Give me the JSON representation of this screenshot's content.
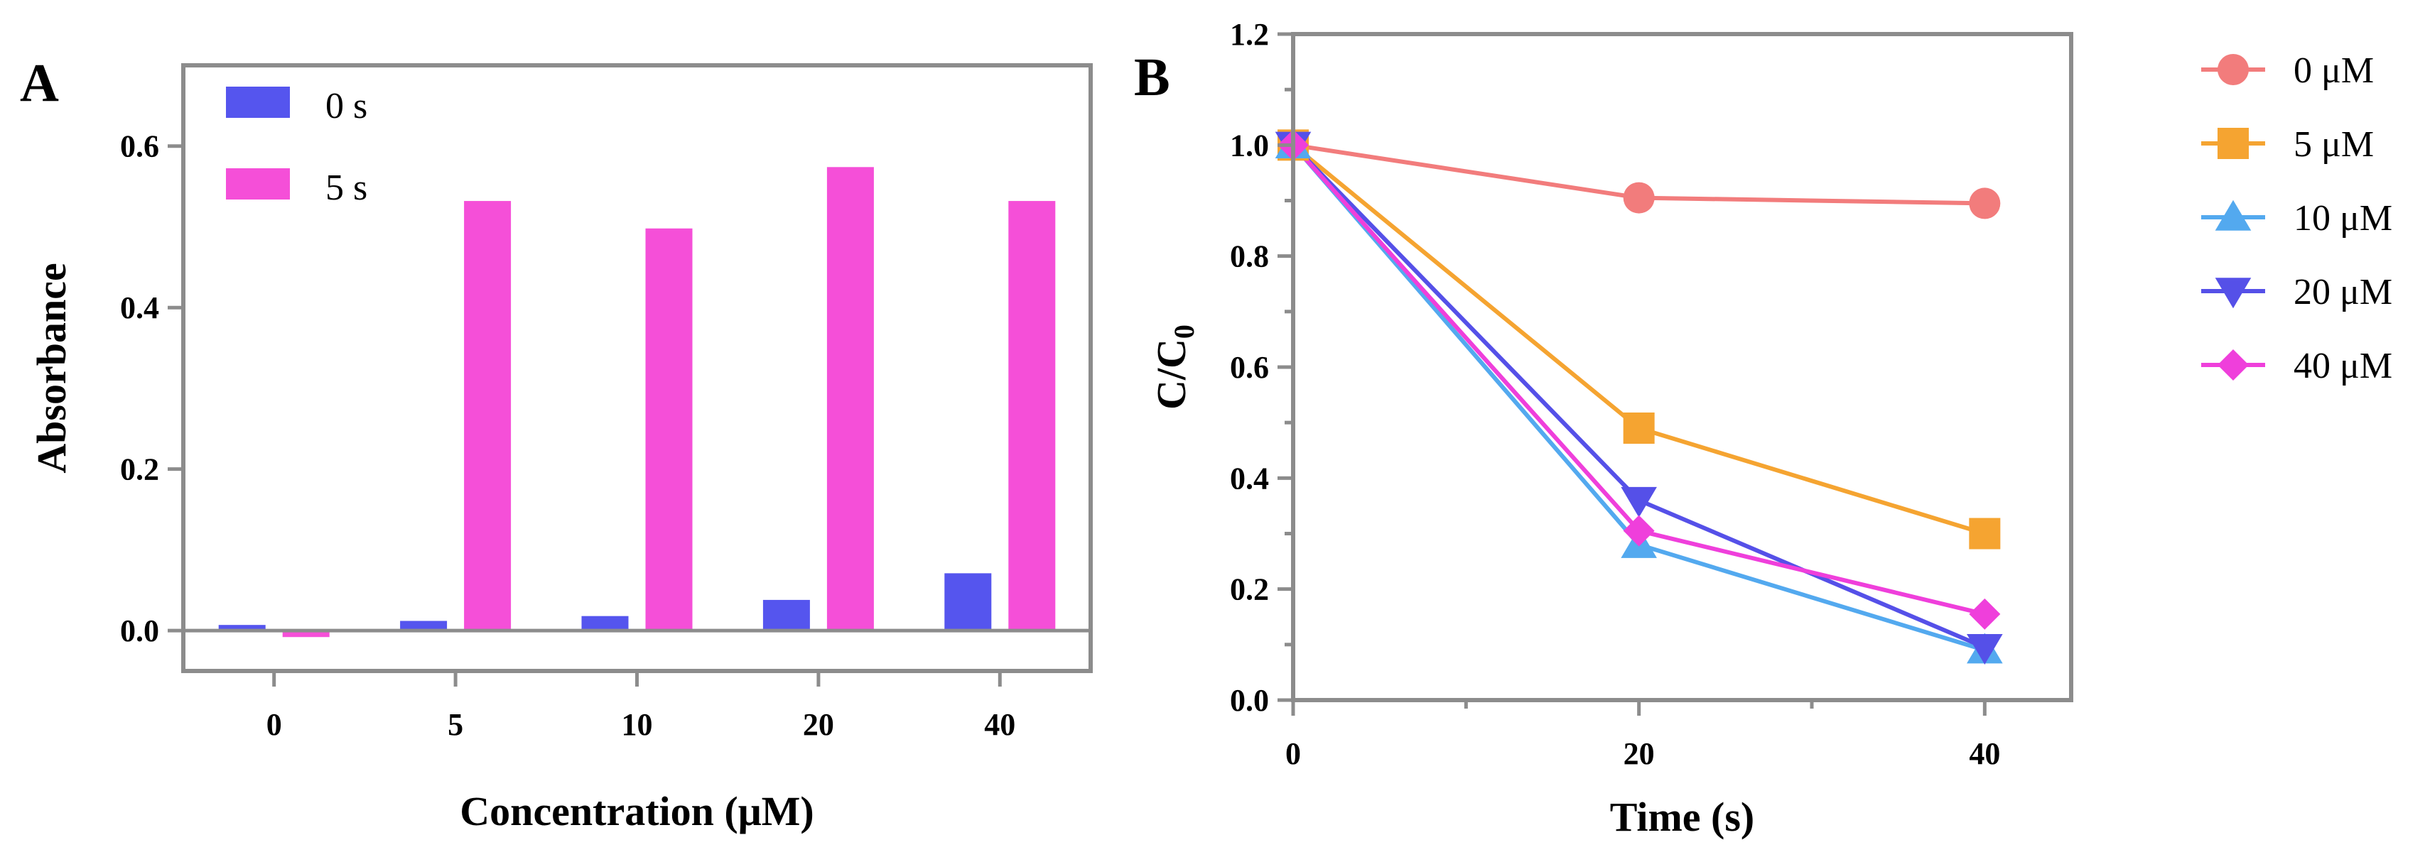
{
  "panels": {
    "a_label": "A",
    "b_label": "B"
  },
  "chart_data": [
    {
      "type": "bar",
      "categories": [
        "0",
        "5",
        "10",
        "20",
        "40"
      ],
      "series": [
        {
          "name": "0 s",
          "color": "#5555ee",
          "values": [
            0.007,
            0.012,
            0.018,
            0.038,
            0.071
          ]
        },
        {
          "name": "5 s",
          "color": "#f54fd8",
          "values": [
            -0.008,
            0.532,
            0.498,
            0.574,
            0.532
          ]
        }
      ],
      "xlabel": "Concentration (μM)",
      "ylabel": "Absorbance",
      "ylim": [
        -0.05,
        0.7
      ],
      "yticks": [
        0.0,
        0.2,
        0.4,
        0.6
      ],
      "ytick_labels": [
        "0.0",
        "0.2",
        "0.4",
        "0.6"
      ],
      "legend": "top-left",
      "grid": false
    },
    {
      "type": "line",
      "x": [
        0,
        20,
        40
      ],
      "xticks": [
        0,
        20,
        40
      ],
      "xtick_labels": [
        "0",
        "20",
        "40"
      ],
      "series": [
        {
          "name": "0 μM",
          "color": "#f27c7c",
          "marker": "circle",
          "values": [
            1.0,
            0.905,
            0.895
          ]
        },
        {
          "name": "5 μM",
          "color": "#f5a431",
          "marker": "square",
          "values": [
            1.0,
            0.49,
            0.3
          ]
        },
        {
          "name": "10 μM",
          "color": "#53a9ef",
          "marker": "triangle-up",
          "values": [
            1.0,
            0.28,
            0.09
          ]
        },
        {
          "name": "20 μM",
          "color": "#5550e8",
          "marker": "triangle-down",
          "values": [
            1.0,
            0.36,
            0.095
          ]
        },
        {
          "name": "40 μM",
          "color": "#ef3fdb",
          "marker": "diamond",
          "values": [
            1.0,
            0.305,
            0.155
          ]
        }
      ],
      "xlabel": "Time (s)",
      "ylabel": "C/C0",
      "ylabel_main": "C/C",
      "ylabel_sub": "0",
      "xlim": [
        0,
        45
      ],
      "ylim": [
        0.0,
        1.2
      ],
      "yticks": [
        0.0,
        0.2,
        0.4,
        0.6,
        0.8,
        1.0,
        1.2
      ],
      "ytick_labels": [
        "0.0",
        "0.2",
        "0.4",
        "0.6",
        "0.8",
        "1.0",
        "1.2"
      ],
      "legend": "right",
      "grid": false
    }
  ]
}
